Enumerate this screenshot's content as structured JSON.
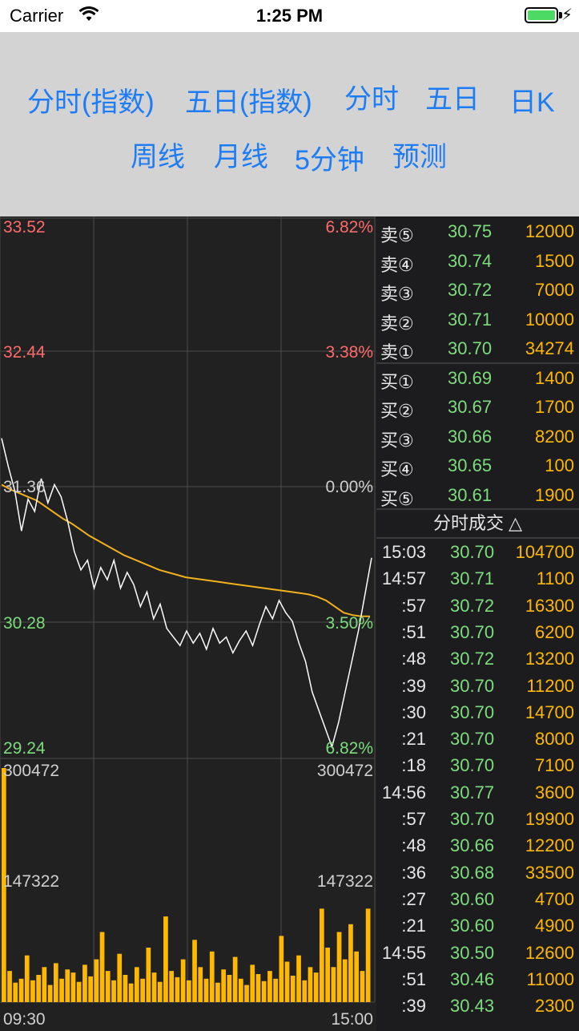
{
  "status_bar": {
    "carrier": "Carrier",
    "time": "1:25 PM",
    "battery_color": "#4cd964"
  },
  "tabs": [
    {
      "label": "分时(指数)"
    },
    {
      "label": "五日(指数)"
    },
    {
      "label": "分时"
    },
    {
      "label": "五日"
    },
    {
      "label": "日K"
    },
    {
      "label": "周线"
    },
    {
      "label": "月线"
    },
    {
      "label": "5分钟"
    },
    {
      "label": "预测"
    }
  ],
  "accent_color": "#1e7cf6",
  "chart": {
    "price_labels": {
      "top": "33.52",
      "upper": "32.44",
      "mid": "31.36",
      "lower": "30.28",
      "bottom": "29.24"
    },
    "pct_labels": {
      "top": "6.82%",
      "upper": "3.38%",
      "mid": "0.00%",
      "lower": "3.50%",
      "bottom": "6.82%"
    },
    "volume_labels": {
      "max_left": "300472",
      "max_right": "300472",
      "mid_left": "147322",
      "mid_right": "147322"
    },
    "time_labels": {
      "start": "09:30",
      "end": "15:00"
    }
  },
  "chart_data": {
    "type": "line",
    "y_range": [
      29.24,
      33.52
    ],
    "volume_range": [
      0,
      300472
    ],
    "series": [
      {
        "values": [
          31.78,
          31.55,
          31.35,
          31.02,
          31.28,
          31.18,
          31.45,
          31.25,
          31.4,
          31.3,
          31.1,
          30.85,
          30.7,
          30.78,
          30.55,
          30.72,
          30.62,
          30.78,
          30.55,
          30.68,
          30.58,
          30.4,
          30.52,
          30.3,
          30.42,
          30.22,
          30.15,
          30.08,
          30.2,
          30.1,
          30.18,
          30.05,
          30.22,
          30.1,
          30.15,
          30.02,
          30.12,
          30.2,
          30.08,
          30.25,
          30.4,
          30.3,
          30.45,
          30.35,
          30.28,
          30.1,
          29.95,
          29.7,
          29.55,
          29.4,
          29.25,
          29.45,
          29.7,
          29.95,
          30.2,
          30.5,
          30.8
        ]
      },
      {
        "values": [
          31.4,
          31.36,
          31.33,
          31.3,
          31.27,
          31.22,
          31.17,
          31.12,
          31.08,
          31.03,
          30.98,
          30.94,
          30.9,
          30.86,
          30.82,
          30.79,
          30.76,
          30.73,
          30.7,
          30.68,
          30.66,
          30.64,
          30.63,
          30.62,
          30.61,
          30.6,
          30.59,
          30.58,
          30.57,
          30.56,
          30.55,
          30.54,
          30.53,
          30.52,
          30.51,
          30.5,
          30.48,
          30.45,
          30.4,
          30.35,
          30.33,
          30.32,
          30.32
        ]
      }
    ],
    "volumes": [
      300472,
      40000,
      25000,
      30000,
      60000,
      28000,
      35000,
      45000,
      22000,
      50000,
      30000,
      42000,
      38000,
      26000,
      48000,
      33000,
      55000,
      90000,
      40000,
      28000,
      62000,
      35000,
      24000,
      45000,
      30000,
      70000,
      38000,
      26000,
      110000,
      40000,
      32000,
      55000,
      28000,
      80000,
      45000,
      30000,
      65000,
      25000,
      42000,
      35000,
      58000,
      30000,
      22000,
      48000,
      36000,
      27000,
      40000,
      30000,
      85000,
      52000,
      34000,
      60000,
      28000,
      45000,
      38000,
      120000,
      70000,
      45000,
      90000,
      55000,
      100000,
      65000,
      40000,
      120000
    ]
  },
  "order_book": {
    "sell": [
      {
        "label": "卖⑤",
        "price": "30.75",
        "volume": "12000"
      },
      {
        "label": "卖④",
        "price": "30.74",
        "volume": "1500"
      },
      {
        "label": "卖③",
        "price": "30.72",
        "volume": "7000"
      },
      {
        "label": "卖②",
        "price": "30.71",
        "volume": "10000"
      },
      {
        "label": "卖①",
        "price": "30.70",
        "volume": "34274"
      }
    ],
    "buy": [
      {
        "label": "买①",
        "price": "30.69",
        "volume": "1400"
      },
      {
        "label": "买②",
        "price": "30.67",
        "volume": "1700"
      },
      {
        "label": "买③",
        "price": "30.66",
        "volume": "8200"
      },
      {
        "label": "买④",
        "price": "30.65",
        "volume": "100"
      },
      {
        "label": "买⑤",
        "price": "30.61",
        "volume": "1900"
      }
    ]
  },
  "trades": {
    "header": "分时成交 △",
    "rows": [
      {
        "time": "15:03",
        "price": "30.70",
        "volume": "104700"
      },
      {
        "time": "14:57",
        "price": "30.71",
        "volume": "1100"
      },
      {
        "time": ":57",
        "price": "30.72",
        "volume": "16300"
      },
      {
        "time": ":51",
        "price": "30.70",
        "volume": "6200"
      },
      {
        "time": ":48",
        "price": "30.72",
        "volume": "13200"
      },
      {
        "time": ":39",
        "price": "30.70",
        "volume": "11200"
      },
      {
        "time": ":30",
        "price": "30.70",
        "volume": "14700"
      },
      {
        "time": ":21",
        "price": "30.70",
        "volume": "8000"
      },
      {
        "time": ":18",
        "price": "30.70",
        "volume": "7100"
      },
      {
        "time": "14:56",
        "price": "30.77",
        "volume": "3600"
      },
      {
        "time": ":57",
        "price": "30.70",
        "volume": "19900"
      },
      {
        "time": ":48",
        "price": "30.66",
        "volume": "12200"
      },
      {
        "time": ":36",
        "price": "30.68",
        "volume": "33500"
      },
      {
        "time": ":27",
        "price": "30.60",
        "volume": "4700"
      },
      {
        "time": ":21",
        "price": "30.60",
        "volume": "4900"
      },
      {
        "time": "14:55",
        "price": "30.50",
        "volume": "12600"
      },
      {
        "time": ":51",
        "price": "30.46",
        "volume": "11000"
      },
      {
        "time": ":39",
        "price": "30.43",
        "volume": "2300"
      }
    ]
  }
}
